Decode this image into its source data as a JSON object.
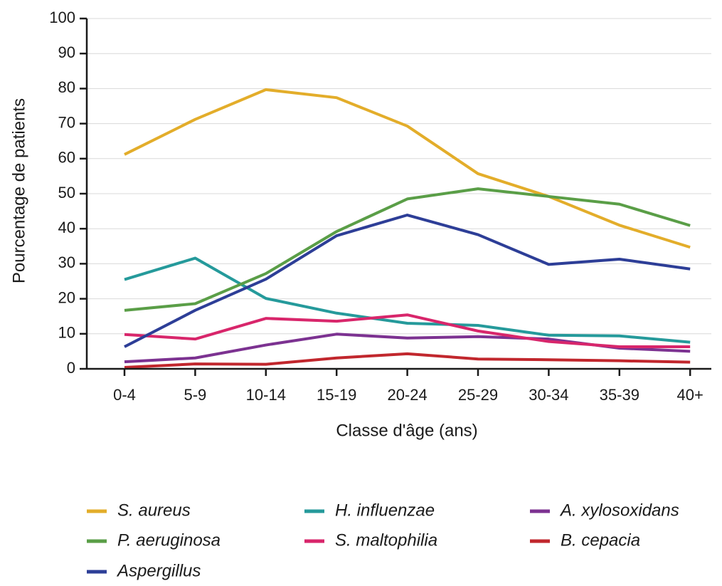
{
  "chart_data": {
    "type": "line",
    "xlabel": "Classe d'âge (ans)",
    "ylabel": "Pourcentage de patients",
    "categories": [
      "0-4",
      "5-9",
      "10-14",
      "15-19",
      "20-24",
      "25-29",
      "30-34",
      "35-39",
      "40+"
    ],
    "series": [
      {
        "name": "S. aureus",
        "color": "#e3ad2a",
        "values": [
          61.2,
          71.2,
          79.7,
          77.4,
          69.3,
          55.7,
          49.2,
          41.0,
          34.7
        ]
      },
      {
        "name": "H. influenzae",
        "color": "#259a9b",
        "values": [
          25.5,
          31.6,
          20.1,
          15.9,
          13.0,
          12.4,
          9.6,
          9.4,
          7.6
        ]
      },
      {
        "name": "A. xylosoxidans",
        "color": "#7c3291",
        "values": [
          2.0,
          3.1,
          6.8,
          9.9,
          8.8,
          9.2,
          8.5,
          5.9,
          5.0
        ]
      },
      {
        "name": "P. aeruginosa",
        "color": "#5a9e47",
        "values": [
          16.7,
          18.6,
          27.2,
          39.2,
          48.5,
          51.4,
          49.2,
          47.0,
          40.9
        ]
      },
      {
        "name": "S. maltophilia",
        "color": "#d8266b",
        "values": [
          9.8,
          8.5,
          14.4,
          13.6,
          15.4,
          10.8,
          7.8,
          6.3,
          6.3
        ]
      },
      {
        "name": "B. cepacia",
        "color": "#c1272d",
        "values": [
          0.4,
          1.4,
          1.3,
          3.1,
          4.3,
          2.8,
          2.6,
          2.3,
          1.9
        ]
      },
      {
        "name": "Aspergillus",
        "color": "#2d3e97",
        "values": [
          6.3,
          16.7,
          25.6,
          38.0,
          43.9,
          38.3,
          29.8,
          31.3,
          28.5
        ]
      }
    ],
    "ylim": [
      0,
      100
    ],
    "yticks": [
      0,
      10,
      20,
      30,
      40,
      50,
      60,
      70,
      80,
      90,
      100
    ],
    "grid": true
  }
}
